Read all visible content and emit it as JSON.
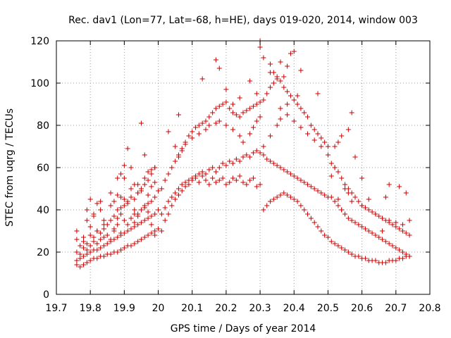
{
  "chart_data": {
    "type": "scatter",
    "title": "Rec. dav1 (Lon=77, Lat=-68, h=HE), days 019-020, 2014, window 003",
    "xlabel": "GPS time / Days of year 2014",
    "ylabel": "STEC from uqrg / TECUs",
    "xlim": [
      19.7,
      20.8
    ],
    "ylim": [
      0,
      120
    ],
    "xticks": [
      "19.7",
      "19.8",
      "19.9",
      "20",
      "20.1",
      "20.2",
      "20.3",
      "20.4",
      "20.5",
      "20.6",
      "20.7",
      "20.8"
    ],
    "yticks": [
      "0",
      "20",
      "40",
      "60",
      "80",
      "100",
      "120"
    ],
    "grid": true,
    "marker": "plus",
    "marker_color": "#cc0000",
    "series": [
      {
        "x": [
          19.76,
          19.76,
          19.77,
          19.77,
          19.78,
          19.78,
          19.79,
          19.79,
          19.8,
          19.8,
          19.81,
          19.81,
          19.82,
          19.82,
          19.83,
          19.83,
          19.84,
          19.84,
          19.85,
          19.85,
          19.86,
          19.86,
          19.87,
          19.87,
          19.88,
          19.88,
          19.89,
          19.89,
          19.9,
          19.9,
          19.91,
          19.91,
          19.92,
          19.92,
          19.93,
          19.93,
          19.94,
          19.94,
          19.95,
          19.95,
          19.96,
          19.96,
          19.97,
          19.97,
          19.98,
          19.98,
          19.99,
          19.99,
          20.0,
          20.0,
          19.76,
          19.77,
          19.78,
          19.79,
          19.8,
          19.81,
          19.82,
          19.83,
          19.84,
          19.85,
          19.86,
          19.87,
          19.88,
          19.89,
          19.9,
          19.91,
          19.92,
          19.93,
          19.94,
          19.95,
          19.96,
          19.97,
          19.98,
          19.99,
          20.0,
          19.76,
          19.77,
          19.78,
          19.79,
          19.8,
          19.81,
          19.82,
          19.83,
          19.84,
          19.85,
          19.86,
          19.87,
          19.88,
          19.89,
          19.9,
          19.91,
          19.92,
          19.93,
          19.94,
          19.95,
          19.96,
          19.97,
          19.98,
          19.99,
          19.76,
          19.78,
          19.79,
          19.8,
          19.81,
          19.82,
          19.83,
          19.84,
          19.86,
          19.87,
          19.88,
          19.89,
          19.9,
          19.91,
          19.92,
          19.93,
          19.94,
          19.95,
          19.96,
          19.97,
          19.98,
          19.99,
          19.79,
          19.8,
          19.81,
          19.82,
          19.84,
          19.87,
          19.88,
          19.89,
          19.9,
          19.91,
          19.93,
          19.94,
          19.96,
          19.97,
          19.98,
          19.99,
          19.9,
          19.95,
          19.96,
          19.97,
          19.98,
          19.99,
          19.94,
          19.93,
          19.89,
          19.88,
          19.92,
          19.86,
          19.83,
          20.01,
          20.02,
          20.03,
          20.04,
          20.05,
          20.06,
          20.07,
          20.08,
          20.09,
          20.1,
          20.11,
          20.12,
          20.13,
          20.14,
          20.15,
          20.16,
          20.17,
          20.18,
          20.19,
          20.2,
          20.21,
          20.22,
          20.23,
          20.24,
          20.25,
          20.26,
          20.27,
          20.28,
          20.29,
          20.3,
          20.01,
          20.02,
          20.03,
          20.04,
          20.05,
          20.06,
          20.07,
          20.08,
          20.09,
          20.1,
          20.11,
          20.12,
          20.13,
          20.14,
          20.15,
          20.16,
          20.17,
          20.18,
          20.19,
          20.2,
          20.21,
          20.22,
          20.23,
          20.24,
          20.25,
          20.26,
          20.27,
          20.28,
          20.29,
          20.3,
          20.01,
          20.02,
          20.03,
          20.04,
          20.05,
          20.06,
          20.07,
          20.08,
          20.09,
          20.1,
          20.11,
          20.12,
          20.13,
          20.14,
          20.15,
          20.16,
          20.17,
          20.18,
          20.19,
          20.2,
          20.21,
          20.22,
          20.23,
          20.24,
          20.25,
          20.26,
          20.27,
          20.28,
          20.29,
          20.3,
          20.03,
          20.05,
          20.06,
          20.07,
          20.08,
          20.1,
          20.12,
          20.14,
          20.15,
          20.17,
          20.18,
          20.2,
          20.22,
          20.24,
          20.25,
          20.27,
          20.28,
          20.29,
          20.3,
          20.13,
          20.17,
          20.18,
          20.2,
          20.27,
          20.29,
          20.3,
          20.06,
          20.24,
          20.22,
          20.31,
          20.32,
          20.33,
          20.34,
          20.35,
          20.36,
          20.37,
          20.38,
          20.39,
          20.4,
          20.41,
          20.42,
          20.43,
          20.44,
          20.45,
          20.46,
          20.47,
          20.48,
          20.49,
          20.5,
          20.31,
          20.32,
          20.33,
          20.34,
          20.35,
          20.36,
          20.37,
          20.38,
          20.39,
          20.4,
          20.41,
          20.42,
          20.43,
          20.44,
          20.45,
          20.46,
          20.47,
          20.48,
          20.49,
          20.5,
          20.31,
          20.32,
          20.33,
          20.34,
          20.35,
          20.36,
          20.37,
          20.38,
          20.39,
          20.4,
          20.41,
          20.42,
          20.43,
          20.44,
          20.45,
          20.46,
          20.47,
          20.48,
          20.49,
          20.5,
          20.31,
          20.33,
          20.35,
          20.36,
          20.38,
          20.4,
          20.42,
          20.44,
          20.46,
          20.48,
          20.5,
          20.3,
          20.31,
          20.33,
          20.34,
          20.35,
          20.36,
          20.37,
          20.38,
          20.39,
          20.4,
          20.41,
          20.42,
          20.47,
          20.38,
          20.36,
          20.33,
          20.51,
          20.52,
          20.53,
          20.54,
          20.55,
          20.56,
          20.57,
          20.58,
          20.59,
          20.6,
          20.61,
          20.62,
          20.63,
          20.64,
          20.65,
          20.66,
          20.67,
          20.68,
          20.69,
          20.7,
          20.71,
          20.72,
          20.73,
          20.74,
          20.51,
          20.52,
          20.53,
          20.54,
          20.55,
          20.56,
          20.57,
          20.58,
          20.59,
          20.6,
          20.61,
          20.62,
          20.63,
          20.64,
          20.65,
          20.66,
          20.67,
          20.68,
          20.69,
          20.7,
          20.71,
          20.72,
          20.73,
          20.74,
          20.51,
          20.52,
          20.53,
          20.54,
          20.55,
          20.56,
          20.57,
          20.58,
          20.59,
          20.6,
          20.61,
          20.62,
          20.63,
          20.64,
          20.65,
          20.66,
          20.67,
          20.68,
          20.69,
          20.7,
          20.71,
          20.72,
          20.73,
          20.74,
          20.52,
          20.53,
          20.54,
          20.56,
          20.57,
          20.58,
          20.6,
          20.62,
          20.64,
          20.66,
          20.68,
          20.7,
          20.72,
          20.74,
          20.54,
          20.53,
          20.55,
          20.51,
          20.52,
          20.56,
          20.57,
          20.6,
          20.61,
          20.66,
          20.67,
          20.68,
          20.71,
          20.73
        ],
        "y": [
          14,
          16,
          13,
          17,
          14,
          18,
          15,
          19,
          16,
          20,
          17,
          21,
          17,
          21,
          18,
          22,
          18,
          23,
          19,
          24,
          19,
          25,
          20,
          26,
          20,
          27,
          21,
          28,
          22,
          29,
          23,
          30,
          23,
          31,
          24,
          32,
          25,
          33,
          26,
          34,
          27,
          35,
          28,
          36,
          29,
          37,
          30,
          38,
          31,
          40,
          20,
          19,
          22,
          24,
          23,
          25,
          24,
          26,
          27,
          28,
          26,
          30,
          33,
          29,
          35,
          33,
          36,
          38,
          37,
          40,
          41,
          43,
          44,
          46,
          49,
          26,
          23,
          25,
          21,
          28,
          27,
          30,
          29,
          31,
          33,
          35,
          37,
          40,
          38,
          42,
          44,
          46,
          45,
          48,
          50,
          52,
          47,
          51,
          53,
          30,
          27,
          35,
          32,
          37,
          30,
          40,
          33,
          42,
          44,
          47,
          41,
          55,
          43,
          50,
          52,
          48,
          49,
          55,
          54,
          57,
          60,
          40,
          45,
          38,
          43,
          35,
          31,
          55,
          57,
          61,
          69,
          40,
          52,
          66,
          58,
          59,
          60,
          45,
          81,
          42,
          39,
          33,
          28,
          38,
          34,
          46,
          36,
          60,
          48,
          44,
          38,
          41,
          44,
          46,
          48,
          50,
          52,
          53,
          54,
          55,
          56,
          57,
          58,
          57,
          59,
          60,
          58,
          60,
          62,
          61,
          63,
          62,
          64,
          63,
          65,
          66,
          65,
          67,
          68,
          67,
          50,
          54,
          57,
          60,
          63,
          66,
          69,
          72,
          75,
          77,
          79,
          80,
          81,
          82,
          84,
          86,
          88,
          89,
          90,
          91,
          88,
          86,
          85,
          84,
          86,
          87,
          88,
          89,
          90,
          91,
          30,
          35,
          38,
          42,
          45,
          47,
          49,
          51,
          52,
          54,
          55,
          53,
          56,
          54,
          52,
          55,
          53,
          54,
          55,
          52,
          53,
          55,
          54,
          56,
          53,
          52,
          54,
          55,
          51,
          52,
          77,
          70,
          65,
          68,
          71,
          74,
          76,
          78,
          80,
          81,
          82,
          80,
          78,
          75,
          72,
          76,
          79,
          82,
          84,
          102,
          111,
          107,
          97,
          101,
          95,
          120,
          85,
          93,
          90,
          66,
          64,
          63,
          62,
          61,
          60,
          59,
          58,
          57,
          56,
          55,
          54,
          53,
          52,
          51,
          50,
          49,
          48,
          47,
          46,
          92,
          95,
          98,
          100,
          103,
          101,
          98,
          96,
          94,
          92,
          90,
          88,
          86,
          84,
          80,
          78,
          76,
          74,
          72,
          70,
          40,
          42,
          44,
          45,
          46,
          47,
          48,
          47,
          46,
          45,
          44,
          42,
          40,
          38,
          36,
          34,
          32,
          30,
          28,
          27,
          70,
          75,
          80,
          83,
          85,
          82,
          79,
          76,
          73,
          70,
          66,
          117,
          112,
          109,
          105,
          102,
          110,
          103,
          108,
          114,
          115,
          94,
          106,
          95,
          90,
          88,
          105,
          46,
          44,
          42,
          40,
          38,
          36,
          35,
          34,
          33,
          32,
          31,
          30,
          29,
          28,
          27,
          26,
          25,
          24,
          23,
          22,
          21,
          20,
          19,
          18,
          62,
          60,
          58,
          55,
          52,
          50,
          48,
          46,
          44,
          42,
          41,
          40,
          39,
          38,
          37,
          36,
          35,
          34,
          33,
          32,
          31,
          30,
          29,
          28,
          25,
          24,
          23,
          22,
          21,
          20,
          19,
          18,
          18,
          17,
          17,
          16,
          16,
          16,
          15,
          15,
          15,
          16,
          16,
          16,
          17,
          17,
          18,
          18,
          70,
          72,
          75,
          78,
          86,
          65,
          55,
          45,
          38,
          36,
          35,
          34,
          33,
          35,
          40,
          45,
          50,
          56,
          60,
          48,
          44,
          42,
          41,
          30,
          46,
          52,
          51,
          48
        ]
      }
    ]
  }
}
